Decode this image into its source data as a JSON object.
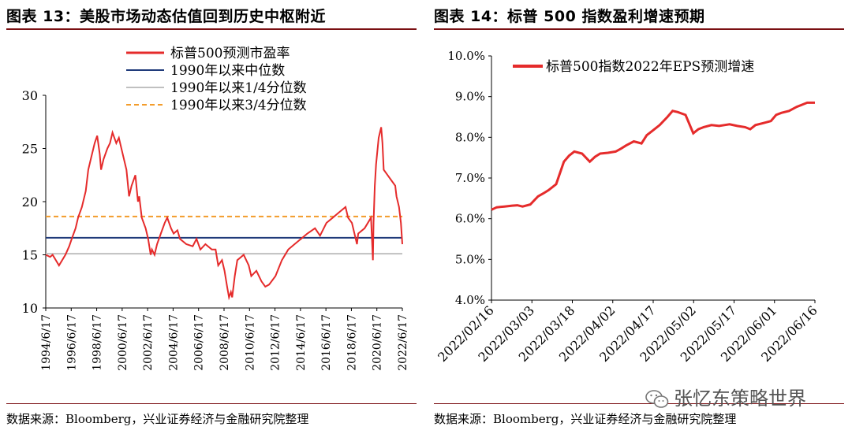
{
  "left": {
    "title": "图表 13：美股市场动态估值回到历史中枢附近",
    "source": "数据来源：Bloomberg，兴业证券经济与金融研究院整理"
  },
  "right": {
    "title": "图表 14：标普 500 指数盈利增速预期",
    "source": "数据来源：Bloomberg，兴业证券经济与金融研究院整理"
  },
  "watermark": "张忆东策略世界",
  "colors": {
    "red": "#e52b2b",
    "navy": "#1f3a7a",
    "gray": "#c0c0c0",
    "orange": "#f39c2b",
    "rule": "#7a0f12"
  },
  "chart_data": [
    {
      "type": "line",
      "title": "",
      "xlabel": "",
      "ylabel": "",
      "ylim": [
        10,
        30
      ],
      "yticks": [
        10,
        15,
        20,
        25,
        30
      ],
      "xlim": [
        1994.46,
        2022.46
      ],
      "xticks": [
        "1994/6/17",
        "1996/6/17",
        "1998/6/17",
        "2000/6/17",
        "2002/6/17",
        "2004/6/17",
        "2006/6/17",
        "2008/6/17",
        "2010/6/17",
        "2012/6/17",
        "2014/6/17",
        "2016/6/17",
        "2018/6/17",
        "2020/6/17",
        "2022/6/17"
      ],
      "legend_position": "top-right",
      "series": [
        {
          "name": "标普500预测市盈率",
          "style": "solid-red",
          "x": [
            1994.46,
            1994.8,
            1995.0,
            1995.5,
            1996.0,
            1996.3,
            1996.5,
            1996.8,
            1997.0,
            1997.3,
            1997.6,
            1997.8,
            1998.0,
            1998.3,
            1998.5,
            1998.7,
            1998.8,
            1999.0,
            1999.3,
            1999.5,
            1999.7,
            2000.0,
            2000.2,
            2000.5,
            2000.8,
            2001.0,
            2001.2,
            2001.5,
            2001.7,
            2001.8,
            2002.0,
            2002.3,
            2002.5,
            2002.7,
            2002.8,
            2003.0,
            2003.2,
            2003.5,
            2003.8,
            2004.0,
            2004.3,
            2004.5,
            2004.8,
            2005.0,
            2005.5,
            2006.0,
            2006.3,
            2006.6,
            2007.0,
            2007.5,
            2007.8,
            2008.0,
            2008.3,
            2008.5,
            2008.7,
            2008.85,
            2009.0,
            2009.1,
            2009.3,
            2009.5,
            2010.0,
            2010.4,
            2010.6,
            2011.0,
            2011.4,
            2011.7,
            2012.0,
            2012.5,
            2013.0,
            2013.5,
            2014.0,
            2014.5,
            2015.0,
            2015.6,
            2016.0,
            2016.5,
            2017.0,
            2017.5,
            2018.0,
            2018.2,
            2018.5,
            2018.9,
            2019.0,
            2019.5,
            2020.0,
            2020.15,
            2020.2,
            2020.3,
            2020.4,
            2020.6,
            2020.8,
            2020.9,
            2021.0,
            2021.3,
            2021.6,
            2021.9,
            2022.0,
            2022.2,
            2022.35,
            2022.46
          ],
          "values": [
            15.0,
            14.8,
            15.0,
            14.0,
            15.0,
            15.8,
            16.5,
            17.5,
            18.5,
            19.5,
            21.0,
            23.0,
            24.0,
            25.5,
            26.2,
            24.5,
            23.0,
            24.0,
            25.0,
            25.5,
            26.5,
            25.5,
            26.0,
            24.5,
            23.0,
            20.5,
            21.5,
            22.5,
            20.0,
            20.5,
            18.5,
            17.5,
            16.5,
            15.0,
            15.5,
            15.0,
            16.0,
            17.0,
            18.0,
            18.5,
            17.5,
            17.0,
            17.3,
            16.5,
            16.0,
            15.8,
            16.5,
            15.5,
            16.0,
            15.5,
            15.5,
            14.0,
            14.5,
            13.5,
            12.0,
            11.0,
            11.5,
            11.0,
            13.0,
            14.5,
            15.0,
            14.0,
            13.0,
            13.5,
            12.5,
            12.0,
            12.2,
            13.0,
            14.5,
            15.5,
            16.0,
            16.5,
            17.0,
            17.5,
            16.8,
            18.0,
            18.5,
            19.0,
            19.5,
            18.5,
            18.0,
            16.0,
            17.0,
            17.5,
            18.5,
            14.5,
            18.0,
            21.5,
            23.5,
            26.0,
            27.0,
            25.5,
            23.0,
            22.5,
            22.0,
            21.5,
            20.5,
            19.5,
            18.0,
            16.0
          ]
        },
        {
          "name": "1990年以来中位数",
          "style": "solid-navy",
          "value": 16.6
        },
        {
          "name": "1990年以来1/4分位数",
          "style": "solid-gray",
          "value": 15.1
        },
        {
          "name": "1990年以来3/4分位数",
          "style": "dashed-orange",
          "value": 18.6
        }
      ]
    },
    {
      "type": "line",
      "title": "",
      "xlabel": "",
      "ylabel": "",
      "ylim": [
        4.0,
        10.0
      ],
      "yticks": [
        "4.0%",
        "5.0%",
        "6.0%",
        "7.0%",
        "8.0%",
        "9.0%",
        "10.0%"
      ],
      "xticks": [
        "2022/02/16",
        "2022/03/03",
        "2022/03/18",
        "2022/04/02",
        "2022/04/17",
        "2022/05/02",
        "2022/05/17",
        "2022/06/01",
        "2022/06/16"
      ],
      "x_days_range": [
        0,
        125
      ],
      "legend_position": "top-left",
      "series": [
        {
          "name": "标普500指数2022年EPS预测增速",
          "style": "solid-red",
          "x_days": [
            0,
            2,
            5,
            8,
            10,
            12,
            15,
            18,
            20,
            22,
            25,
            28,
            30,
            32,
            35,
            38,
            40,
            42,
            45,
            48,
            50,
            52,
            55,
            58,
            60,
            62,
            65,
            68,
            70,
            72,
            75,
            78,
            80,
            82,
            85,
            88,
            90,
            92,
            95,
            98,
            100,
            102,
            105,
            108,
            110,
            112,
            115,
            118,
            120,
            122,
            125
          ],
          "values": [
            6.22,
            6.28,
            6.3,
            6.32,
            6.33,
            6.3,
            6.35,
            6.55,
            6.62,
            6.7,
            6.85,
            7.4,
            7.55,
            7.65,
            7.6,
            7.4,
            7.52,
            7.6,
            7.62,
            7.65,
            7.72,
            7.8,
            7.9,
            7.85,
            8.05,
            8.15,
            8.3,
            8.5,
            8.65,
            8.62,
            8.55,
            8.1,
            8.2,
            8.25,
            8.3,
            8.28,
            8.3,
            8.32,
            8.28,
            8.25,
            8.2,
            8.3,
            8.35,
            8.4,
            8.55,
            8.6,
            8.65,
            8.75,
            8.8,
            8.85,
            8.85
          ]
        }
      ]
    }
  ]
}
